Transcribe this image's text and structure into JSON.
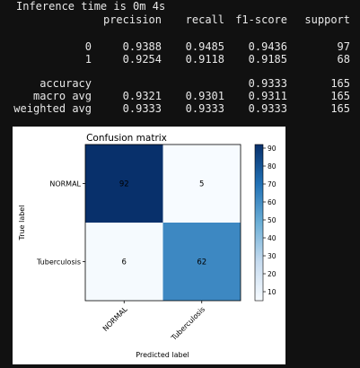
{
  "report": {
    "partial_header": "Inference time is 0m 4s",
    "columns": [
      "precision",
      "recall",
      "f1-score",
      "support"
    ],
    "class_rows": [
      {
        "label": "0",
        "precision": "0.9388",
        "recall": "0.9485",
        "f1": "0.9436",
        "support": "97"
      },
      {
        "label": "1",
        "precision": "0.9254",
        "recall": "0.9118",
        "f1": "0.9185",
        "support": "68"
      }
    ],
    "summary_rows": [
      {
        "label": "accuracy",
        "precision": "",
        "recall": "",
        "f1": "0.9333",
        "support": "165"
      },
      {
        "label": "macro avg",
        "precision": "0.9321",
        "recall": "0.9301",
        "f1": "0.9311",
        "support": "165"
      },
      {
        "label": "weighted avg",
        "precision": "0.9333",
        "recall": "0.9333",
        "f1": "0.9333",
        "support": "165"
      }
    ]
  },
  "chart_data": {
    "type": "heatmap",
    "title": "Confusion matrix",
    "xlabel": "Predicted label",
    "ylabel": "True label",
    "row_labels": [
      "NORMAL",
      "Tuberculosis"
    ],
    "col_labels": [
      "NORMAL",
      "Tuberculosis"
    ],
    "values": [
      [
        92,
        5
      ],
      [
        6,
        62
      ]
    ],
    "colormap": "Blues",
    "colorbar": {
      "ticks": [
        10,
        20,
        30,
        40,
        50,
        60,
        70,
        80,
        90
      ],
      "range": [
        5,
        92
      ]
    },
    "colors": {
      "dark": "#08306b",
      "light": "#f7fbff",
      "mid": "#4a8ec6"
    }
  }
}
